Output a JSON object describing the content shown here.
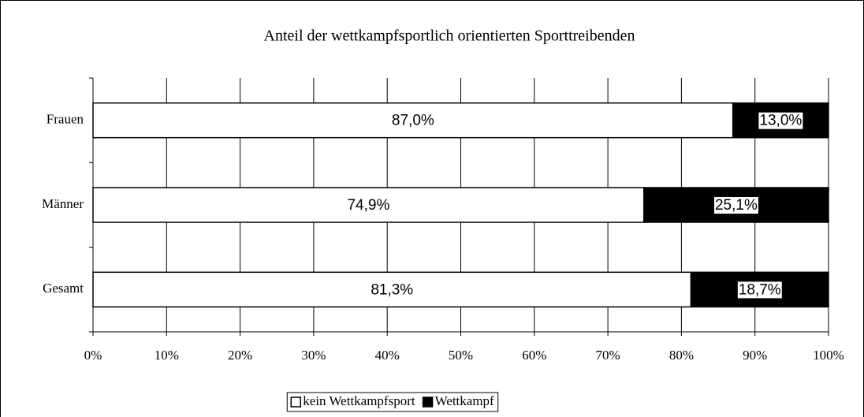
{
  "chart_data": {
    "type": "stacked-barh",
    "title": "Anteil der wettkampfsportlich orientierten Sporttreibenden",
    "categories": [
      "Frauen",
      "Männer",
      "Gesamt"
    ],
    "series": [
      {
        "name": "kein Wettkampfsport",
        "color": "#ffffff",
        "values": [
          87.0,
          74.9,
          81.3
        ],
        "value_labels": [
          "87,0%",
          "74,9%",
          "81,3%"
        ]
      },
      {
        "name": "Wettkampf",
        "color": "#000000",
        "values": [
          13.0,
          25.1,
          18.7
        ],
        "value_labels": [
          "13,0%",
          "25,1%",
          "18,7%"
        ]
      }
    ],
    "xlim": [
      0,
      100
    ],
    "xticks": [
      {
        "value": 0,
        "label": "0%"
      },
      {
        "value": 10,
        "label": "10%"
      },
      {
        "value": 20,
        "label": "20%"
      },
      {
        "value": 30,
        "label": "30%"
      },
      {
        "value": 40,
        "label": "40%"
      },
      {
        "value": 50,
        "label": "50%"
      },
      {
        "value": 60,
        "label": "60%"
      },
      {
        "value": 70,
        "label": "70%"
      },
      {
        "value": 80,
        "label": "80%"
      },
      {
        "value": 90,
        "label": "90%"
      },
      {
        "value": 100,
        "label": "100%"
      }
    ],
    "grid": true,
    "legend": "bottom"
  }
}
